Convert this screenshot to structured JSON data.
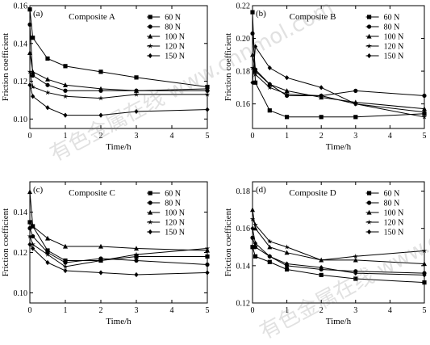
{
  "watermark": {
    "text": "有色金属在线 www.cnnmol.com"
  },
  "chart_data": [
    {
      "type": "line",
      "panel": "(a)",
      "title": "Composite A",
      "xlabel": "Time/h",
      "ylabel": "Friction coefficient",
      "xlim": [
        0,
        5
      ],
      "ylim": [
        0.095,
        0.16
      ],
      "xticks": [
        "0",
        "1",
        "2",
        "3",
        "4",
        "5"
      ],
      "yticks": [
        "0.10",
        "0.12",
        "0.14",
        "0.16"
      ],
      "ytick_values": [
        0.1,
        0.12,
        0.14,
        0.16
      ],
      "legend_position": "top-right",
      "x": [
        0,
        0.083,
        0.5,
        1,
        2,
        3,
        5
      ],
      "series": [
        {
          "name": "60 N",
          "marker": "square",
          "values": [
            0.158,
            0.143,
            0.132,
            0.128,
            0.125,
            0.122,
            0.117
          ]
        },
        {
          "name": "80 N",
          "marker": "circle",
          "values": [
            0.15,
            0.123,
            0.118,
            0.115,
            0.115,
            0.115,
            0.115
          ]
        },
        {
          "name": "100 N",
          "marker": "triangle",
          "values": [
            0.135,
            0.125,
            0.121,
            0.118,
            0.116,
            0.115,
            0.116
          ]
        },
        {
          "name": "120 N",
          "marker": "star",
          "values": [
            0.125,
            0.117,
            0.114,
            0.112,
            0.111,
            0.113,
            0.113
          ]
        },
        {
          "name": "150 N",
          "marker": "diamond",
          "values": [
            0.118,
            0.112,
            0.106,
            0.102,
            0.102,
            0.104,
            0.105
          ]
        }
      ]
    },
    {
      "type": "line",
      "panel": "(b)",
      "title": "Composite B",
      "xlabel": "Time/h",
      "ylabel": "Friction coefficient",
      "xlim": [
        0,
        5
      ],
      "ylim": [
        0.145,
        0.22
      ],
      "xticks": [
        "0",
        "1",
        "2",
        "3",
        "4",
        "5"
      ],
      "yticks": [
        "0.16",
        "0.18",
        "0.20",
        "0.22"
      ],
      "ytick_values": [
        0.16,
        0.18,
        0.2,
        0.22
      ],
      "legend_position": "top-right",
      "x": [
        0,
        0.083,
        0.5,
        1,
        2,
        3,
        5
      ],
      "series": [
        {
          "name": "60 N",
          "marker": "square",
          "values": [
            0.216,
            0.173,
            0.156,
            0.152,
            0.152,
            0.152,
            0.154
          ]
        },
        {
          "name": "80 N",
          "marker": "circle",
          "values": [
            0.203,
            0.181,
            0.172,
            0.165,
            0.165,
            0.168,
            0.165
          ]
        },
        {
          "name": "100 N",
          "marker": "triangle",
          "values": [
            0.19,
            0.18,
            0.172,
            0.168,
            0.164,
            0.161,
            0.157
          ]
        },
        {
          "name": "120 N",
          "marker": "star",
          "values": [
            0.182,
            0.178,
            0.17,
            0.166,
            0.165,
            0.16,
            0.152
          ]
        },
        {
          "name": "150 N",
          "marker": "diamond",
          "values": [
            0.173,
            0.195,
            0.182,
            0.176,
            0.17,
            0.16,
            0.155
          ]
        }
      ]
    },
    {
      "type": "line",
      "panel": "(c)",
      "title": "Composite C",
      "xlabel": "Time/h",
      "ylabel": "Friction coefficient",
      "xlim": [
        0,
        5
      ],
      "ylim": [
        0.095,
        0.155
      ],
      "xticks": [
        "0",
        "1",
        "2",
        "3",
        "4",
        "5"
      ],
      "yticks": [
        "0.10",
        "0.12",
        "0.14"
      ],
      "ytick_values": [
        0.1,
        0.12,
        0.14
      ],
      "legend_position": "top-right",
      "x": [
        0,
        0.083,
        0.5,
        1,
        2,
        3,
        5
      ],
      "series": [
        {
          "name": "60 N",
          "marker": "square",
          "values": [
            0.135,
            0.133,
            0.121,
            0.116,
            0.116,
            0.118,
            0.118
          ]
        },
        {
          "name": "80 N",
          "marker": "circle",
          "values": [
            0.132,
            0.128,
            0.12,
            0.115,
            0.117,
            0.116,
            0.114
          ]
        },
        {
          "name": "100 N",
          "marker": "triangle",
          "values": [
            0.15,
            0.133,
            0.127,
            0.123,
            0.123,
            0.122,
            0.121
          ]
        },
        {
          "name": "120 N",
          "marker": "star",
          "values": [
            0.128,
            0.124,
            0.119,
            0.113,
            0.116,
            0.119,
            0.122
          ]
        },
        {
          "name": "150 N",
          "marker": "diamond",
          "values": [
            0.124,
            0.122,
            0.115,
            0.111,
            0.11,
            0.109,
            0.11
          ]
        }
      ]
    },
    {
      "type": "line",
      "panel": "(d)",
      "title": "Composite D",
      "xlabel": "Time/h",
      "ylabel": "Friction coefficient",
      "xlim": [
        0,
        5
      ],
      "ylim": [
        0.12,
        0.185
      ],
      "xticks": [
        "0",
        "1",
        "2",
        "3",
        "4",
        "5"
      ],
      "yticks": [
        "0.12",
        "0.14",
        "0.16",
        "0.18"
      ],
      "ytick_values": [
        0.12,
        0.14,
        0.16,
        0.18
      ],
      "legend_position": "top-right",
      "x": [
        0,
        0.083,
        0.5,
        1,
        2,
        3,
        5
      ],
      "series": [
        {
          "name": "60 N",
          "marker": "square",
          "values": [
            0.15,
            0.145,
            0.142,
            0.138,
            0.135,
            0.133,
            0.131
          ]
        },
        {
          "name": "80 N",
          "marker": "circle",
          "values": [
            0.155,
            0.15,
            0.145,
            0.14,
            0.138,
            0.137,
            0.136
          ]
        },
        {
          "name": "100 N",
          "marker": "triangle",
          "values": [
            0.17,
            0.16,
            0.15,
            0.147,
            0.143,
            0.143,
            0.141
          ]
        },
        {
          "name": "120 N",
          "marker": "star",
          "values": [
            0.165,
            0.162,
            0.153,
            0.15,
            0.143,
            0.145,
            0.148
          ]
        },
        {
          "name": "150 N",
          "marker": "diamond",
          "values": [
            0.16,
            0.152,
            0.145,
            0.141,
            0.139,
            0.136,
            0.135
          ]
        }
      ]
    }
  ]
}
